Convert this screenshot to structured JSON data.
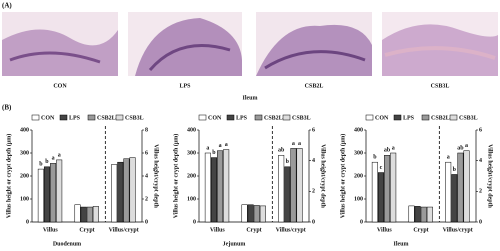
{
  "panel_a": {
    "label": "(A)",
    "images": [
      {
        "label": "CON"
      },
      {
        "label": "LPS"
      },
      {
        "label": "CSB2L"
      },
      {
        "label": "CSB3L"
      }
    ],
    "caption": "Ileum"
  },
  "panel_b_label": "(B)",
  "chart_data": [
    {
      "type": "bar",
      "title": "Duodenum",
      "categories": [
        "Villus",
        "Crypt"
      ],
      "y2_categories": [
        "Villus/crypt"
      ],
      "ylabel": "Villus height or crypt depth (μm)",
      "y2label": "Villus height/crypt depth",
      "ylim": [
        0,
        400
      ],
      "yticks": [
        0,
        100,
        200,
        300,
        400
      ],
      "y2lim": [
        0,
        8
      ],
      "y2ticks": [
        0,
        2,
        4,
        6,
        8
      ],
      "series": [
        {
          "name": "CON",
          "color": "#ffffff",
          "values": [
            230,
            75
          ],
          "letters": [
            "b",
            null
          ],
          "y2_values": [
            5.0
          ],
          "y2_letters": [
            null
          ]
        },
        {
          "name": "LPS",
          "color": "#444444",
          "values": [
            240,
            65
          ],
          "letters": [
            "b",
            null
          ],
          "y2_values": [
            5.2
          ],
          "y2_letters": [
            null
          ]
        },
        {
          "name": "CSB2L",
          "color": "#9a9a9a",
          "values": [
            255,
            65
          ],
          "letters": [
            "a",
            null
          ],
          "y2_values": [
            5.5
          ],
          "y2_letters": [
            null
          ]
        },
        {
          "name": "CSB3L",
          "color": "#dddddd",
          "values": [
            270,
            68
          ],
          "letters": [
            "a",
            null
          ],
          "y2_values": [
            5.6
          ],
          "y2_letters": [
            null
          ]
        }
      ]
    },
    {
      "type": "bar",
      "title": "Jejunum",
      "categories": [
        "Villus",
        "Crypt"
      ],
      "y2_categories": [
        "Villus/crypt"
      ],
      "ylabel": "Villus height or crypt depth (μm)",
      "y2label": "Villus height/crypt depth",
      "ylim": [
        0,
        400
      ],
      "yticks": [
        0,
        100,
        200,
        300,
        400
      ],
      "y2lim": [
        0,
        6
      ],
      "y2ticks": [
        0,
        2,
        4,
        6
      ],
      "series": [
        {
          "name": "CON",
          "color": "#ffffff",
          "values": [
            300,
            75
          ],
          "letters": [
            "a",
            null
          ],
          "y2_values": [
            4.35
          ],
          "y2_letters": [
            "ab"
          ]
        },
        {
          "name": "LPS",
          "color": "#444444",
          "values": [
            280,
            75
          ],
          "letters": [
            "b",
            null
          ],
          "y2_values": [
            3.6
          ],
          "y2_letters": [
            "b"
          ]
        },
        {
          "name": "CSB2L",
          "color": "#9a9a9a",
          "values": [
            310,
            72
          ],
          "letters": [
            "a",
            null
          ],
          "y2_values": [
            4.8
          ],
          "y2_letters": [
            "a"
          ]
        },
        {
          "name": "CSB3L",
          "color": "#dddddd",
          "values": [
            315,
            70
          ],
          "letters": [
            "a",
            null
          ],
          "y2_values": [
            4.8
          ],
          "y2_letters": [
            "a"
          ]
        }
      ]
    },
    {
      "type": "bar",
      "title": "Ileum",
      "categories": [
        "Villus",
        "Crypt"
      ],
      "y2_categories": [
        "Villus/crypt"
      ],
      "ylabel": "Villus height or crypt depth (μm)",
      "y2label": "Villus height/crypt depth",
      "ylim": [
        0,
        400
      ],
      "yticks": [
        0,
        100,
        200,
        300,
        400
      ],
      "y2lim": [
        0,
        6
      ],
      "y2ticks": [
        0,
        2,
        4,
        6
      ],
      "series": [
        {
          "name": "CON",
          "color": "#ffffff",
          "values": [
            260,
            70
          ],
          "letters": [
            "b",
            null
          ],
          "y2_values": [
            3.9
          ],
          "y2_letters": [
            "a"
          ]
        },
        {
          "name": "LPS",
          "color": "#444444",
          "values": [
            215,
            68
          ],
          "letters": [
            "c",
            null
          ],
          "y2_values": [
            3.1
          ],
          "y2_letters": [
            "b"
          ]
        },
        {
          "name": "CSB2L",
          "color": "#9a9a9a",
          "values": [
            290,
            65
          ],
          "letters": [
            "ab",
            null
          ],
          "y2_values": [
            4.5
          ],
          "y2_letters": [
            "ab"
          ]
        },
        {
          "name": "CSB3L",
          "color": "#dddddd",
          "values": [
            300,
            65
          ],
          "letters": [
            "a",
            null
          ],
          "y2_values": [
            4.65
          ],
          "y2_letters": [
            "a"
          ]
        }
      ]
    }
  ]
}
